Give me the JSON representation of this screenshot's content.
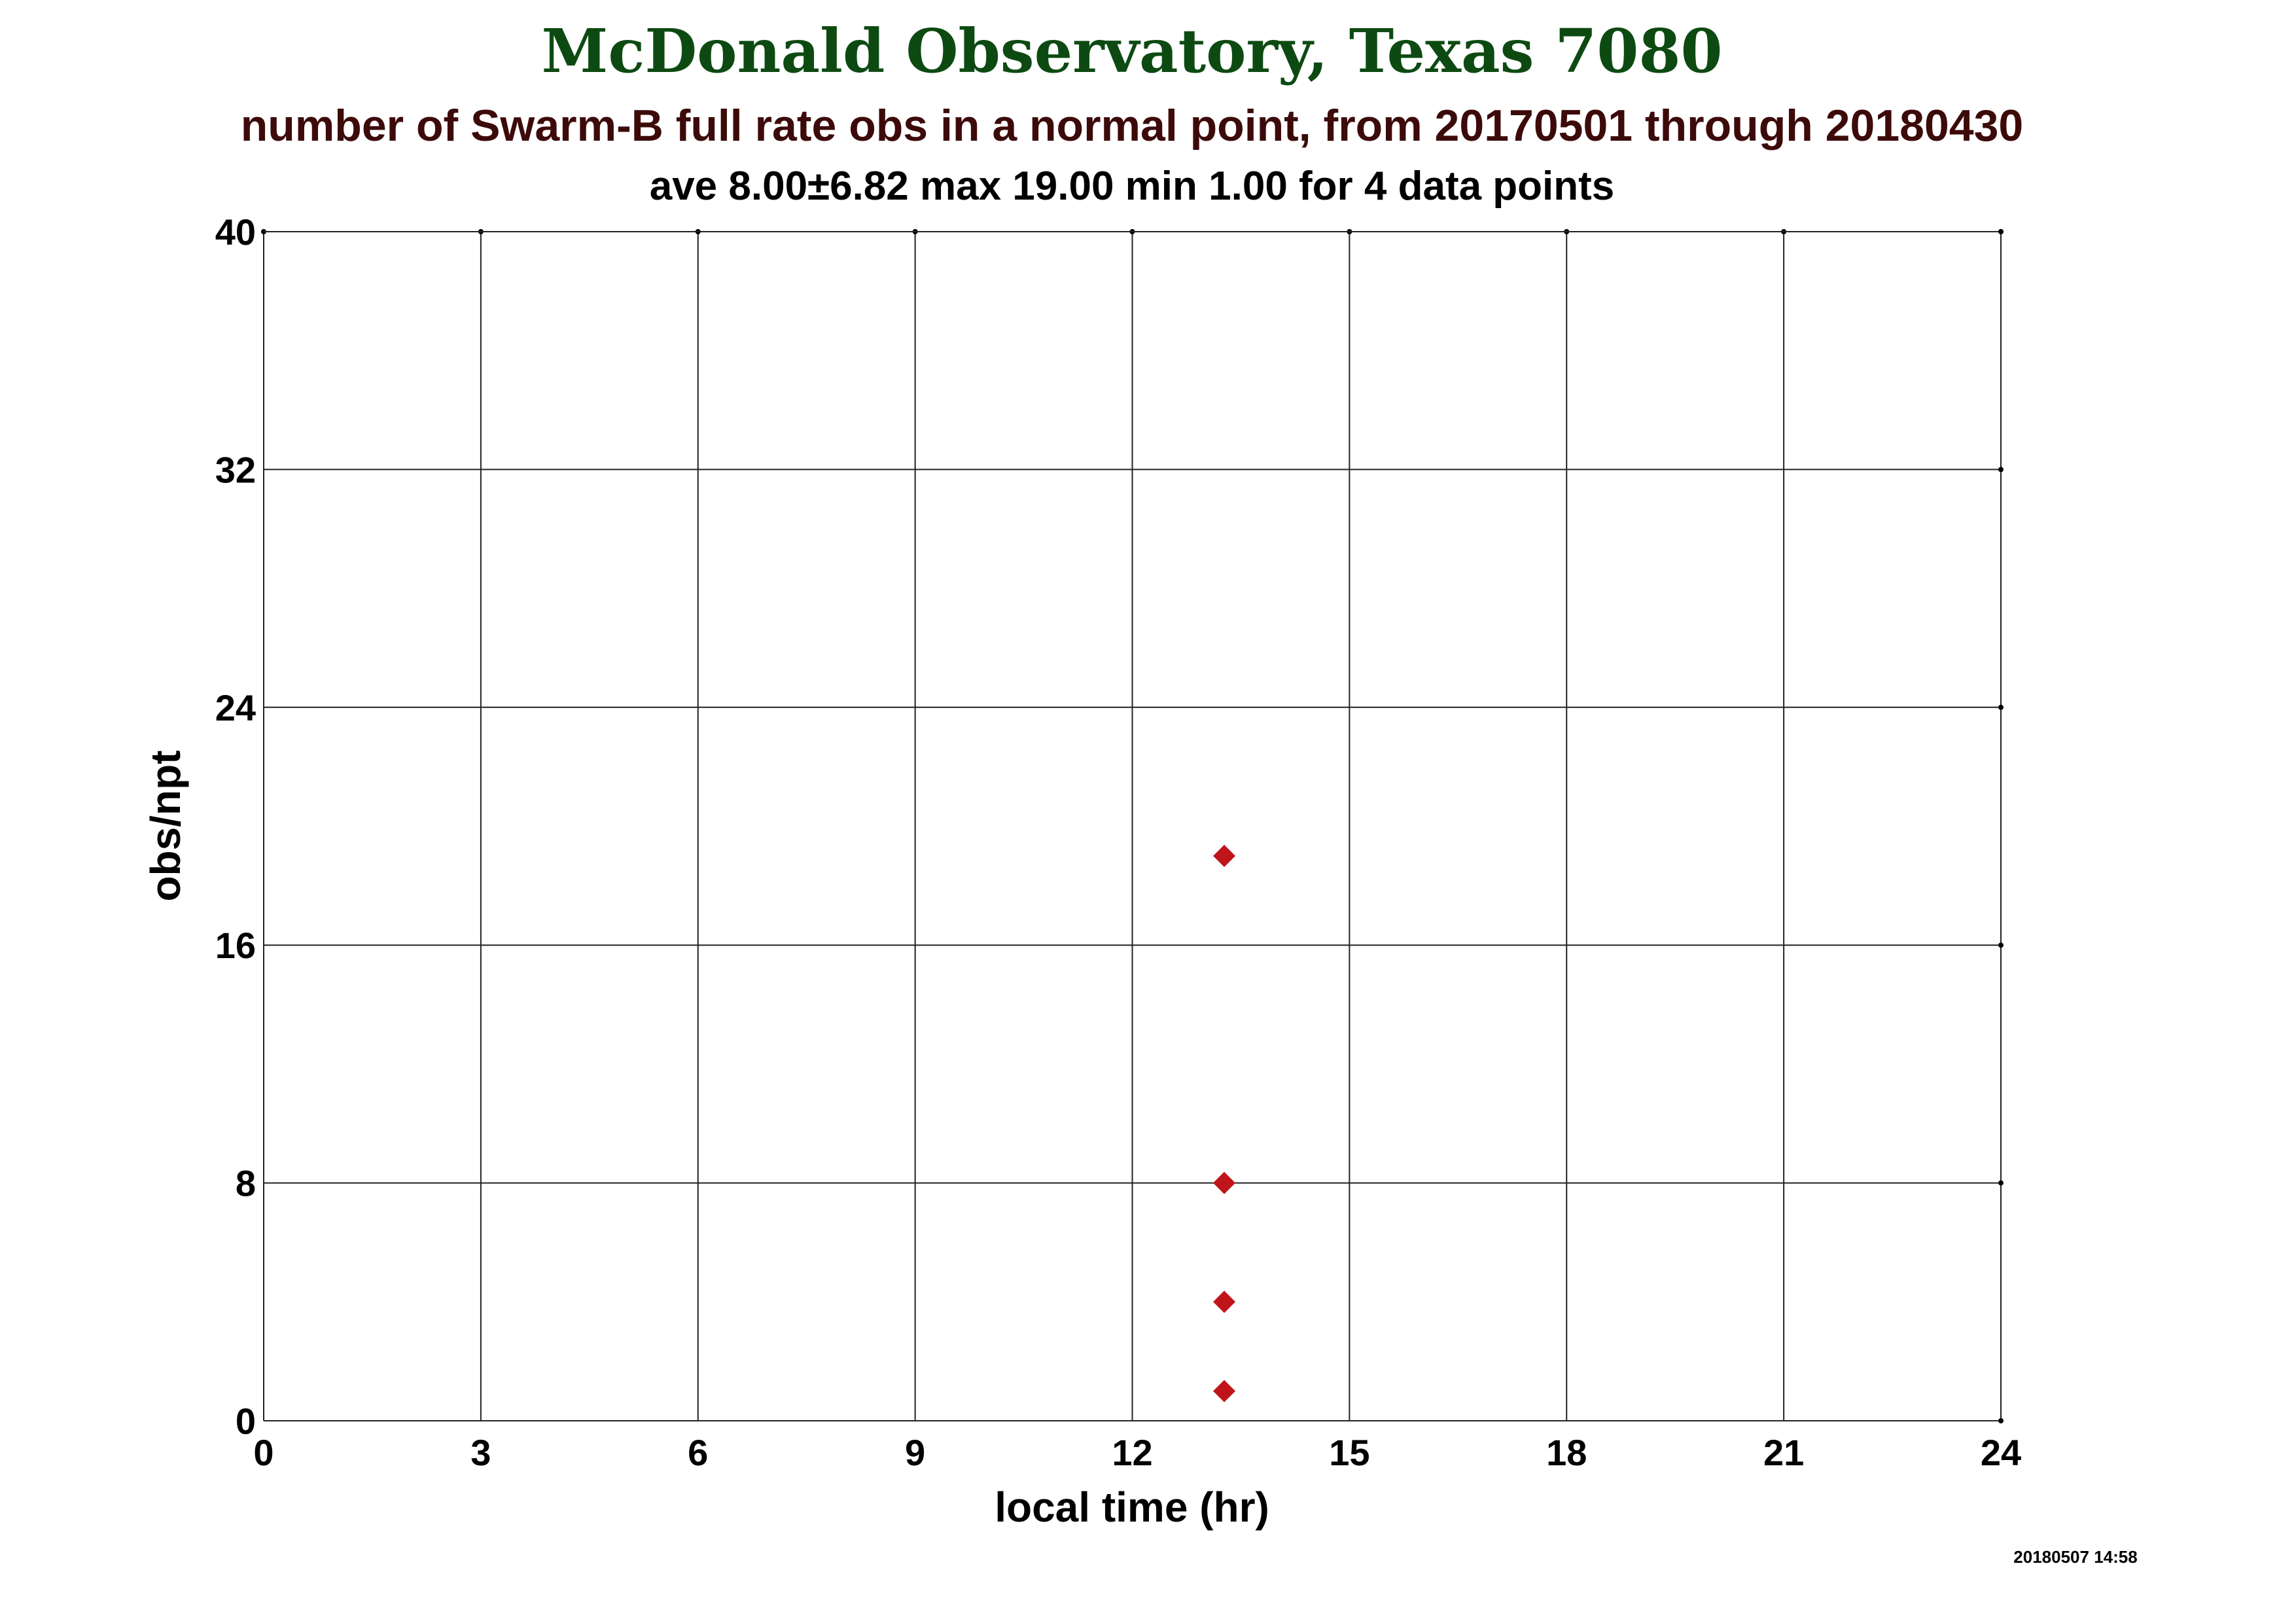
{
  "chart_data": {
    "type": "scatter",
    "title": "McDonald Observatory, Texas 7080",
    "subtitle": "number of Swarm-B full rate obs in a normal point, from 20170501 through 20180430",
    "stats_line": "ave 8.00±6.82 max 19.00 min 1.00 for 4 data points",
    "xlabel": "local time (hr)",
    "ylabel": "obs/npt",
    "xlim": [
      0,
      24
    ],
    "ylim": [
      0,
      40
    ],
    "xticks": [
      0,
      3,
      6,
      9,
      12,
      15,
      18,
      21,
      24
    ],
    "yticks": [
      0,
      8,
      16,
      24,
      32,
      40
    ],
    "grid": true,
    "series": [
      {
        "marker": "diamond",
        "x": [
          13.27,
          13.27,
          13.27,
          13.27
        ],
        "y": [
          19,
          8,
          4,
          1
        ]
      }
    ],
    "timestamp": "20180507 14:58",
    "colors": {
      "title": "#0d4a12",
      "subtitle": "#3d0a0a",
      "text": "#000000",
      "marker": "#c0141b",
      "grid": "#222222"
    }
  }
}
